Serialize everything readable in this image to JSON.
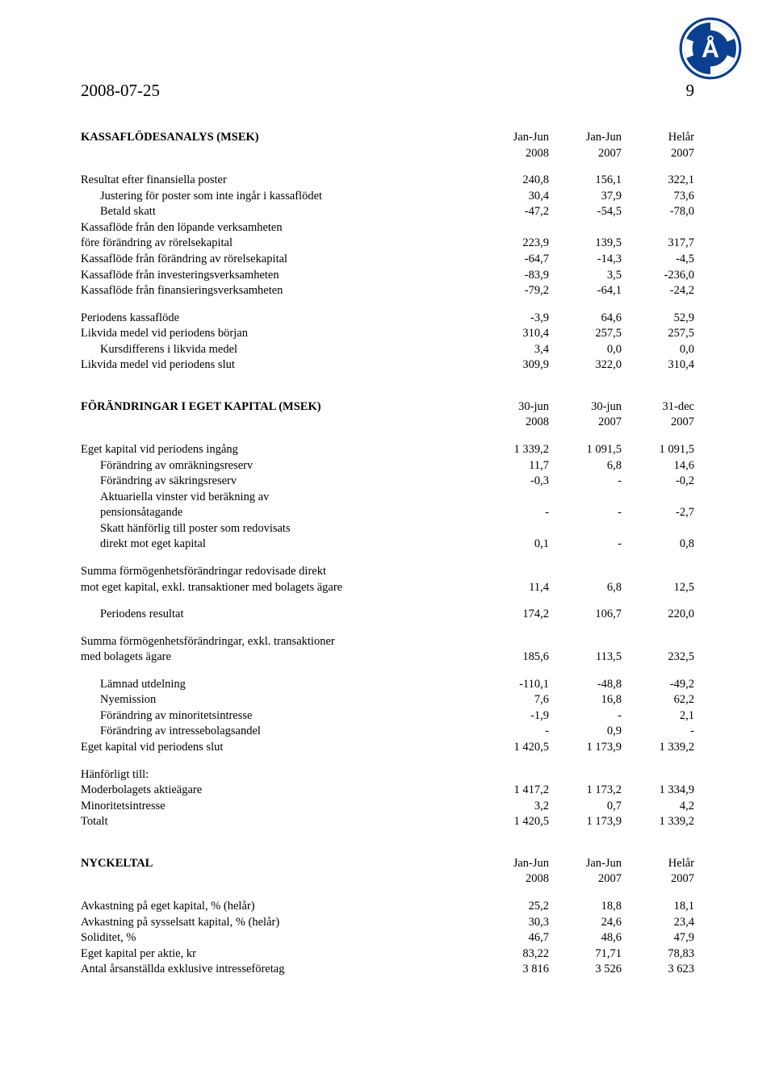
{
  "header": {
    "date": "2008-07-25",
    "page_number": "9"
  },
  "logo": {
    "outer_color": "#0b3f91",
    "inner_letter": "Å",
    "inner_text_color": "#ffffff"
  },
  "sec1": {
    "title": "KASSAFLÖDESANALYS (MSEK)",
    "cols": [
      "Jan-Jun",
      "Jan-Jun",
      "Helår"
    ],
    "years": [
      "2008",
      "2007",
      "2007"
    ],
    "rows": [
      {
        "label": "Resultat efter finansiella poster",
        "v": [
          "240,8",
          "156,1",
          "322,1"
        ]
      },
      {
        "label": "Justering för poster som inte ingår i kassaflödet",
        "v": [
          "30,4",
          "37,9",
          "73,6"
        ],
        "indent": true
      },
      {
        "label": "Betald skatt",
        "v": [
          "-47,2",
          "-54,5",
          "-78,0"
        ],
        "indent": true
      },
      {
        "label": "Kassaflöde från den löpande verksamheten",
        "v": [
          "",
          "",
          ""
        ]
      },
      {
        "label": "före förändring av rörelsekapital",
        "v": [
          "223,9",
          "139,5",
          "317,7"
        ]
      },
      {
        "label": "Kassaflöde från förändring av rörelsekapital",
        "v": [
          "-64,7",
          "-14,3",
          "-4,5"
        ]
      },
      {
        "label": "Kassaflöde från investeringsverksamheten",
        "v": [
          "-83,9",
          "3,5",
          "-236,0"
        ]
      },
      {
        "label": "Kassaflöde från finansieringsverksamheten",
        "v": [
          "-79,2",
          "-64,1",
          "-24,2"
        ]
      }
    ],
    "rows2": [
      {
        "label": "Periodens kassaflöde",
        "v": [
          "-3,9",
          "64,6",
          "52,9"
        ]
      },
      {
        "label": "Likvida medel vid periodens början",
        "v": [
          "310,4",
          "257,5",
          "257,5"
        ]
      },
      {
        "label": "Kursdifferens i likvida medel",
        "v": [
          "3,4",
          "0,0",
          "0,0"
        ],
        "indent": true
      },
      {
        "label": "Likvida medel vid periodens slut",
        "v": [
          "309,9",
          "322,0",
          "310,4"
        ]
      }
    ]
  },
  "sec2": {
    "title": "FÖRÄNDRINGAR I EGET KAPITAL (MSEK)",
    "cols": [
      "30-jun",
      "30-jun",
      "31-dec"
    ],
    "years": [
      "2008",
      "2007",
      "2007"
    ],
    "g1": [
      {
        "label": "Eget kapital vid periodens ingång",
        "v": [
          "1 339,2",
          "1 091,5",
          "1 091,5"
        ]
      },
      {
        "label": "Förändring av omräkningsreserv",
        "v": [
          "11,7",
          "6,8",
          "14,6"
        ],
        "indent": true
      },
      {
        "label": "Förändring av säkringsreserv",
        "v": [
          "-0,3",
          "-",
          "-0,2"
        ],
        "indent": true
      },
      {
        "label": "Aktuariella vinster vid beräkning av",
        "v": [
          "",
          "",
          ""
        ],
        "indent": true
      },
      {
        "label": "pensionsåtagande",
        "v": [
          "-",
          "-",
          "-2,7"
        ],
        "indent": true
      },
      {
        "label": "Skatt hänförlig till poster som redovisats",
        "v": [
          "",
          "",
          ""
        ],
        "indent": true
      },
      {
        "label": "direkt mot eget kapital",
        "v": [
          "0,1",
          "-",
          "0,8"
        ],
        "indent": true
      }
    ],
    "g2": [
      {
        "label": "Summa förmögenhetsförändringar redovisade direkt",
        "v": [
          "",
          "",
          ""
        ]
      },
      {
        "label": "mot eget kapital, exkl. transaktioner med bolagets ägare",
        "v": [
          "11,4",
          "6,8",
          "12,5"
        ]
      }
    ],
    "g3": [
      {
        "label": "Periodens resultat",
        "v": [
          "174,2",
          "106,7",
          "220,0"
        ],
        "indent": true
      }
    ],
    "g4": [
      {
        "label": "Summa förmögenhetsförändringar, exkl. transaktioner",
        "v": [
          "",
          "",
          ""
        ]
      },
      {
        "label": "med bolagets ägare",
        "v": [
          "185,6",
          "113,5",
          "232,5"
        ]
      }
    ],
    "g5": [
      {
        "label": "Lämnad utdelning",
        "v": [
          "-110,1",
          "-48,8",
          "-49,2"
        ],
        "indent": true
      },
      {
        "label": "Nyemission",
        "v": [
          "7,6",
          "16,8",
          "62,2"
        ],
        "indent": true
      },
      {
        "label": "Förändring av minoritetsintresse",
        "v": [
          "-1,9",
          "-",
          "2,1"
        ],
        "indent": true
      },
      {
        "label": "Förändring av intressebolagsandel",
        "v": [
          "-",
          "0,9",
          "-"
        ],
        "indent": true
      }
    ],
    "g6": [
      {
        "label": "Eget kapital vid periodens slut",
        "v": [
          "1 420,5",
          "1 173,9",
          "1 339,2"
        ]
      }
    ],
    "g7": [
      {
        "label": "Hänförligt till:",
        "v": [
          "",
          "",
          ""
        ]
      },
      {
        "label": "Moderbolagets aktieägare",
        "v": [
          "1 417,2",
          "1 173,2",
          "1 334,9"
        ]
      },
      {
        "label": "Minoritetsintresse",
        "v": [
          "3,2",
          "0,7",
          "4,2"
        ]
      },
      {
        "label": "Totalt",
        "v": [
          "1 420,5",
          "1 173,9",
          "1 339,2"
        ]
      }
    ]
  },
  "sec3": {
    "title": "NYCKELTAL",
    "cols": [
      "Jan-Jun",
      "Jan-Jun",
      "Helår"
    ],
    "years": [
      "2008",
      "2007",
      "2007"
    ],
    "rows": [
      {
        "label": "Avkastning på eget kapital, % (helår)",
        "v": [
          "25,2",
          "18,8",
          "18,1"
        ]
      },
      {
        "label": "Avkastning på sysselsatt kapital, % (helår)",
        "v": [
          "30,3",
          "24,6",
          "23,4"
        ]
      },
      {
        "label": "Soliditet, %",
        "v": [
          "46,7",
          "48,6",
          "47,9"
        ]
      },
      {
        "label": "Eget kapital per aktie, kr",
        "v": [
          "83,22",
          "71,71",
          "78,83"
        ]
      },
      {
        "label": "Antal årsanställda exklusive intresseföretag",
        "v": [
          "3 816",
          "3 526",
          "3 623"
        ]
      }
    ]
  }
}
